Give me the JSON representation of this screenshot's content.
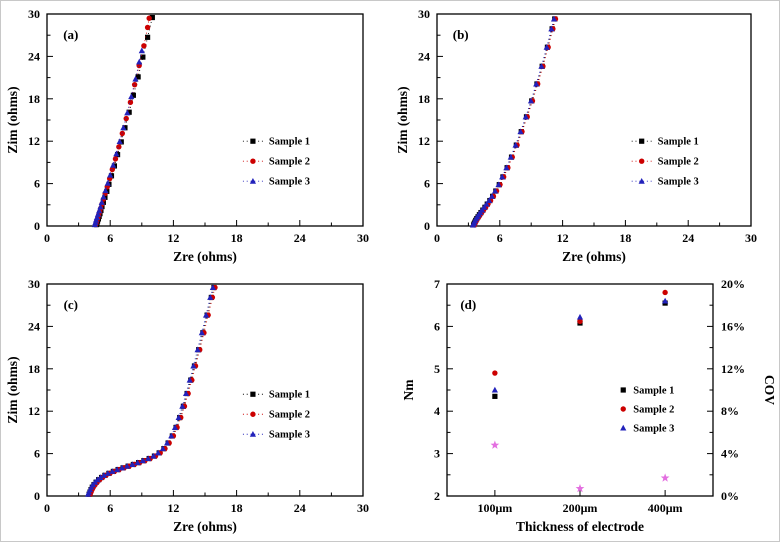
{
  "figure": {
    "background": "#ffffff",
    "panel_count": 4
  },
  "chart_data": [
    {
      "id": "a",
      "type": "nyquist",
      "panel_label": "(a)",
      "title": "",
      "xlabel": "Zre (ohms)",
      "ylabel": "Zim (ohms)",
      "xlim": [
        0,
        30
      ],
      "ylim": [
        0,
        30
      ],
      "xticks": [
        0,
        6,
        12,
        18,
        24,
        30
      ],
      "yticks": [
        0,
        6,
        12,
        18,
        24,
        30
      ],
      "grid": false,
      "legend": {
        "fx": 0.62,
        "fy": 0.6
      },
      "series": [
        {
          "name": "Sample 1",
          "marker": "square",
          "color": "#000000",
          "points": [
            [
              4.7,
              0.2
            ],
            [
              4.75,
              0.45
            ],
            [
              4.8,
              0.7
            ],
            [
              4.88,
              1.0
            ],
            [
              4.95,
              1.35
            ],
            [
              5.03,
              1.75
            ],
            [
              5.12,
              2.2
            ],
            [
              5.22,
              2.75
            ],
            [
              5.35,
              3.35
            ],
            [
              5.5,
              4.05
            ],
            [
              5.68,
              4.9
            ],
            [
              5.88,
              5.9
            ],
            [
              6.12,
              7.1
            ],
            [
              6.4,
              8.5
            ],
            [
              6.7,
              10.1
            ],
            [
              7.05,
              11.9
            ],
            [
              7.4,
              13.9
            ],
            [
              7.8,
              16.1
            ],
            [
              8.2,
              18.5
            ],
            [
              8.65,
              21.1
            ],
            [
              9.1,
              23.9
            ],
            [
              9.55,
              26.7
            ],
            [
              10.0,
              29.5
            ]
          ]
        },
        {
          "name": "Sample 2",
          "marker": "circle",
          "color": "#cc0000",
          "points": [
            [
              4.62,
              0.2
            ],
            [
              4.68,
              0.5
            ],
            [
              4.74,
              0.8
            ],
            [
              4.82,
              1.15
            ],
            [
              4.9,
              1.55
            ],
            [
              5.0,
              2.0
            ],
            [
              5.1,
              2.5
            ],
            [
              5.22,
              3.1
            ],
            [
              5.36,
              3.8
            ],
            [
              5.52,
              4.6
            ],
            [
              5.72,
              5.55
            ],
            [
              5.95,
              6.7
            ],
            [
              6.2,
              8.0
            ],
            [
              6.5,
              9.5
            ],
            [
              6.82,
              11.2
            ],
            [
              7.15,
              13.1
            ],
            [
              7.52,
              15.2
            ],
            [
              7.92,
              17.5
            ],
            [
              8.32,
              20.0
            ],
            [
              8.75,
              22.7
            ],
            [
              9.2,
              25.5
            ],
            [
              9.55,
              28.1
            ],
            [
              9.7,
              29.4
            ]
          ]
        },
        {
          "name": "Sample 3",
          "marker": "triangle",
          "color": "#2222bb",
          "points": [
            [
              4.55,
              0.2
            ],
            [
              4.6,
              0.5
            ],
            [
              4.66,
              0.85
            ],
            [
              4.74,
              1.2
            ],
            [
              4.84,
              1.65
            ],
            [
              4.95,
              2.15
            ],
            [
              5.07,
              2.7
            ],
            [
              5.2,
              3.35
            ],
            [
              5.36,
              4.1
            ],
            [
              5.55,
              5.0
            ],
            [
              5.77,
              6.05
            ],
            [
              6.0,
              7.2
            ],
            [
              6.28,
              8.6
            ],
            [
              6.58,
              10.2
            ],
            [
              6.9,
              11.95
            ],
            [
              7.25,
              13.9
            ],
            [
              7.62,
              16.0
            ],
            [
              8.0,
              18.3
            ],
            [
              8.4,
              20.8
            ],
            [
              8.75,
              23.2
            ],
            [
              9.0,
              24.8
            ]
          ]
        }
      ]
    },
    {
      "id": "b",
      "type": "nyquist",
      "panel_label": "(b)",
      "title": "",
      "xlabel": "Zre (ohms)",
      "ylabel": "Zim (ohms)",
      "xlim": [
        0,
        30
      ],
      "ylim": [
        0,
        30
      ],
      "xticks": [
        0,
        6,
        12,
        18,
        24,
        30
      ],
      "yticks": [
        0,
        6,
        12,
        18,
        24,
        30
      ],
      "grid": false,
      "legend": {
        "fx": 0.62,
        "fy": 0.6
      },
      "points": [
        [
          3.5,
          0.15
        ],
        [
          3.56,
          0.35
        ],
        [
          3.62,
          0.55
        ],
        [
          3.7,
          0.8
        ],
        [
          3.8,
          1.05
        ],
        [
          3.92,
          1.3
        ],
        [
          4.05,
          1.6
        ],
        [
          4.2,
          1.9
        ],
        [
          4.38,
          2.25
        ],
        [
          4.58,
          2.65
        ],
        [
          4.8,
          3.1
        ],
        [
          5.05,
          3.6
        ],
        [
          5.32,
          4.2
        ],
        [
          5.62,
          4.95
        ],
        [
          5.95,
          5.85
        ],
        [
          6.3,
          6.95
        ],
        [
          6.7,
          8.25
        ],
        [
          7.12,
          9.75
        ],
        [
          7.58,
          11.45
        ],
        [
          8.05,
          13.35
        ],
        [
          8.55,
          15.45
        ],
        [
          9.05,
          17.7
        ],
        [
          9.55,
          20.1
        ],
        [
          10.05,
          22.6
        ],
        [
          10.55,
          25.3
        ],
        [
          11.0,
          27.9
        ],
        [
          11.25,
          29.3
        ]
      ],
      "series": [
        {
          "name": "Sample 1",
          "marker": "square",
          "color": "#000000",
          "dx": 0
        },
        {
          "name": "Sample 2",
          "marker": "circle",
          "color": "#cc0000",
          "dx": 0.07
        },
        {
          "name": "Sample 3",
          "marker": "triangle",
          "color": "#2222bb",
          "dx": -0.07
        }
      ]
    },
    {
      "id": "c",
      "type": "nyquist",
      "panel_label": "(c)",
      "title": "",
      "xlabel": "Zre (ohms)",
      "ylabel": "Zim (ohms)",
      "xlim": [
        0,
        30
      ],
      "ylim": [
        0,
        30
      ],
      "xticks": [
        0,
        6,
        12,
        18,
        24,
        30
      ],
      "yticks": [
        0,
        6,
        12,
        18,
        24,
        30
      ],
      "grid": false,
      "legend": {
        "fx": 0.62,
        "fy": 0.52
      },
      "points": [
        [
          4.0,
          0.25
        ],
        [
          4.08,
          0.55
        ],
        [
          4.18,
          0.9
        ],
        [
          4.3,
          1.25
        ],
        [
          4.46,
          1.6
        ],
        [
          4.66,
          1.95
        ],
        [
          4.9,
          2.3
        ],
        [
          5.18,
          2.62
        ],
        [
          5.5,
          2.92
        ],
        [
          5.88,
          3.2
        ],
        [
          6.3,
          3.48
        ],
        [
          6.75,
          3.74
        ],
        [
          7.22,
          3.98
        ],
        [
          7.7,
          4.22
        ],
        [
          8.2,
          4.46
        ],
        [
          8.7,
          4.72
        ],
        [
          9.2,
          5.0
        ],
        [
          9.7,
          5.3
        ],
        [
          10.2,
          5.65
        ],
        [
          10.65,
          6.1
        ],
        [
          11.1,
          6.7
        ],
        [
          11.5,
          7.5
        ],
        [
          11.9,
          8.5
        ],
        [
          12.25,
          9.7
        ],
        [
          12.6,
          11.1
        ],
        [
          12.95,
          12.7
        ],
        [
          13.3,
          14.5
        ],
        [
          13.65,
          16.4
        ],
        [
          14.0,
          18.4
        ],
        [
          14.4,
          20.7
        ],
        [
          14.8,
          23.1
        ],
        [
          15.2,
          25.6
        ],
        [
          15.6,
          28.1
        ],
        [
          15.85,
          29.5
        ]
      ],
      "series": [
        {
          "name": "Sample 1",
          "marker": "square",
          "color": "#000000",
          "dx": 0
        },
        {
          "name": "Sample 2",
          "marker": "circle",
          "color": "#cc0000",
          "dx": 0.1
        },
        {
          "name": "Sample 3",
          "marker": "triangle",
          "color": "#2222bb",
          "dx": -0.1
        }
      ]
    },
    {
      "id": "d",
      "type": "dual",
      "panel_label": "(d)",
      "title": "",
      "xlabel": "Thickness of electrode",
      "ylabel_left": "Nm",
      "ylabel_right": "COV",
      "categories": [
        "100μm",
        "200μm",
        "400μm"
      ],
      "category_fx": [
        0.18,
        0.5,
        0.82
      ],
      "ylim_left": [
        2,
        7
      ],
      "yticks_left": [
        2,
        3,
        4,
        5,
        6,
        7
      ],
      "ylim_right": [
        0,
        20
      ],
      "yticks_right": [
        0,
        4,
        8,
        12,
        16,
        20
      ],
      "ytick_right_suffix": "%",
      "grid": false,
      "legend": {
        "fx": 0.64,
        "fy": 0.5
      },
      "series": [
        {
          "name": "Sample 1",
          "marker": "square",
          "color": "#000000",
          "axis": "left",
          "values": [
            4.35,
            6.08,
            6.55
          ],
          "in_legend": true
        },
        {
          "name": "Sample 2",
          "marker": "circle",
          "color": "#cc0000",
          "axis": "left",
          "values": [
            4.9,
            6.12,
            6.8
          ],
          "in_legend": true
        },
        {
          "name": "Sample 3",
          "marker": "triangle",
          "color": "#2222bb",
          "axis": "left",
          "values": [
            4.5,
            6.22,
            6.6
          ],
          "in_legend": true
        },
        {
          "name": "COV",
          "marker": "star",
          "color": "#e36fe0",
          "axis": "right",
          "values": [
            4.8,
            0.7,
            1.7
          ],
          "in_legend": false
        }
      ]
    }
  ]
}
